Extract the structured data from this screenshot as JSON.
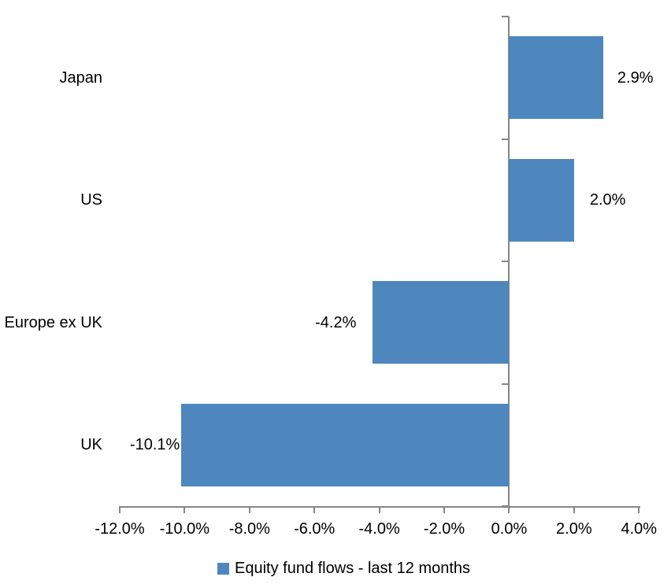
{
  "chart_data": {
    "type": "bar",
    "orientation": "horizontal",
    "categories": [
      "Japan",
      "US",
      "Europe ex UK",
      "UK"
    ],
    "series": [
      {
        "name": "Equity fund flows - last 12 months",
        "values": [
          2.9,
          2.0,
          -4.2,
          -10.1
        ],
        "labels": [
          "2.9%",
          "2.0%",
          "-4.2%",
          "-10.1%"
        ],
        "color": "#4E87BD"
      }
    ],
    "xlim": [
      -12,
      4
    ],
    "x_tick_step": 2,
    "x_tick_labels": [
      "-12.0%",
      "-10.0%",
      "-8.0%",
      "-6.0%",
      "-4.0%",
      "-2.0%",
      "0.0%",
      "2.0%",
      "4.0%"
    ],
    "grid": false,
    "legend_position": "bottom",
    "axis_color": "#868686",
    "text_color": "#000000",
    "background": "#FFFFFF"
  },
  "legend": {
    "label": "Equity fund flows - last 12 months",
    "swatch_color": "#4E87BD"
  }
}
